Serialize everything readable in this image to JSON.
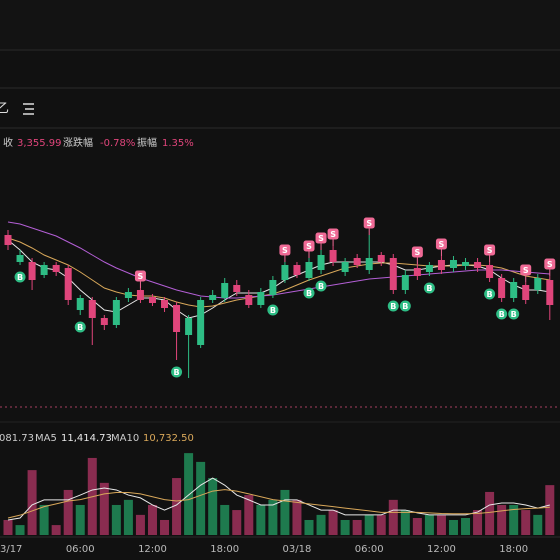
{
  "toolbar": {
    "label": "乙"
  },
  "info": {
    "close_label": "收",
    "close": "3,355.99",
    "change_label": "涨跌幅",
    "change": "-0.78%",
    "amplitude_label": "振幅",
    "amplitude": "1.35%"
  },
  "volume_legend": {
    "vol": "081.73",
    "ma5_label": "MA5",
    "ma5": "11,414.73",
    "ma10_label": "MA10",
    "ma10": "10,732.50"
  },
  "chart": {
    "type": "candlestick",
    "categories": [
      "03/17",
      null,
      null,
      null,
      null,
      null,
      "06:00",
      null,
      null,
      null,
      null,
      null,
      "12:00",
      null,
      null,
      null,
      null,
      null,
      "18:00",
      null,
      null,
      null,
      null,
      null,
      "03/18",
      null,
      null,
      null,
      null,
      null,
      "06:00",
      null,
      null,
      null,
      null,
      null,
      "12:00",
      null,
      null,
      null,
      null,
      null,
      "18:00",
      null,
      null,
      null
    ],
    "ylim": [
      3295,
      3420
    ],
    "up_color": "#2ebd85",
    "down_color": "#e0457b",
    "candles": [
      [
        3377.5,
        3380,
        3370,
        3372.5
      ],
      [
        3364,
        3370,
        3362.5,
        3367.5
      ],
      [
        3364,
        3366,
        3350,
        3355
      ],
      [
        3357.5,
        3364,
        3356,
        3362.5
      ],
      [
        3362.5,
        3364,
        3357,
        3359
      ],
      [
        3361,
        3362.5,
        3342.5,
        3345
      ],
      [
        3340,
        3347.5,
        3337.5,
        3346
      ],
      [
        3345,
        3346.5,
        3322.5,
        3336
      ],
      [
        3336,
        3337.5,
        3330,
        3332.5
      ],
      [
        3332.5,
        3346.5,
        3331,
        3345
      ],
      [
        3346,
        3351,
        3344,
        3349
      ],
      [
        3350,
        3351,
        3343.5,
        3345
      ],
      [
        3346.5,
        3348,
        3342,
        3343.5
      ],
      [
        3345,
        3346.5,
        3339,
        3341
      ],
      [
        3342.5,
        3344,
        3315,
        3329
      ],
      [
        3327.5,
        3337.5,
        3306,
        3336
      ],
      [
        3322.5,
        3346.5,
        3321,
        3345
      ],
      [
        3345,
        3350,
        3343.5,
        3347.5
      ],
      [
        3346,
        3356,
        3344,
        3353.5
      ],
      [
        3352.5,
        3355,
        3347,
        3349
      ],
      [
        3347.5,
        3350,
        3341,
        3342.5
      ],
      [
        3342.5,
        3351,
        3341,
        3349
      ],
      [
        3347.5,
        3357,
        3346,
        3355
      ],
      [
        3355,
        3364,
        3353.5,
        3362.5
      ],
      [
        3362.5,
        3364,
        3356,
        3357.5
      ],
      [
        3356,
        3366,
        3354.5,
        3364
      ],
      [
        3360,
        3370,
        3358,
        3367.5
      ],
      [
        3370,
        3372,
        3362,
        3364
      ],
      [
        3359,
        3366,
        3357,
        3364
      ],
      [
        3366,
        3368,
        3361,
        3362.5
      ],
      [
        3360,
        3377.5,
        3358,
        3366
      ],
      [
        3367.5,
        3369,
        3362,
        3364
      ],
      [
        3366,
        3368,
        3348,
        3350
      ],
      [
        3350,
        3360,
        3348,
        3357.5
      ],
      [
        3361,
        3363,
        3355,
        3357
      ],
      [
        3359,
        3364,
        3357,
        3362.5
      ],
      [
        3365,
        3367,
        3358,
        3360
      ],
      [
        3361,
        3367,
        3359,
        3365
      ],
      [
        3362,
        3366,
        3360,
        3364
      ],
      [
        3364,
        3366,
        3359,
        3361
      ],
      [
        3362.5,
        3364,
        3354,
        3356
      ],
      [
        3356,
        3358,
        3344,
        3346
      ],
      [
        3346,
        3356,
        3344,
        3354
      ],
      [
        3352.5,
        3354,
        3343,
        3345
      ],
      [
        3350,
        3358,
        3348,
        3356
      ],
      [
        3355,
        3357,
        3335,
        3342.5
      ]
    ],
    "ma_lines": [
      {
        "color": "#e8e8e8",
        "values": [
          3375,
          3370,
          3364,
          3361,
          3360,
          3356,
          3350,
          3345,
          3340,
          3339,
          3342.5,
          3346,
          3346,
          3345,
          3340,
          3336,
          3337.5,
          3341,
          3345,
          3348.5,
          3348.5,
          3348.5,
          3351,
          3355,
          3357.5,
          3360,
          3362.5,
          3364,
          3364,
          3364,
          3364,
          3364,
          3362.5,
          3360,
          3360,
          3361,
          3362,
          3362.5,
          3362.5,
          3362,
          3360,
          3356,
          3352.5,
          3350,
          3350,
          3349
        ]
      },
      {
        "color": "#d9a85a",
        "values": [
          3376,
          3374,
          3371,
          3367.5,
          3365,
          3362.5,
          3359,
          3355,
          3351,
          3349,
          3347.5,
          3347,
          3347,
          3346,
          3344,
          3342.5,
          3341.5,
          3342,
          3343.5,
          3345,
          3346,
          3347,
          3348,
          3350,
          3352.5,
          3355,
          3357,
          3359,
          3361,
          3362,
          3363,
          3363.5,
          3363.5,
          3363,
          3362.5,
          3362,
          3362,
          3362,
          3362.5,
          3362.5,
          3362,
          3361,
          3359,
          3357,
          3356,
          3355
        ]
      },
      {
        "color": "#b45fd6",
        "values": [
          3384,
          3383,
          3381,
          3379,
          3377,
          3374,
          3371,
          3367.5,
          3364,
          3361,
          3358.5,
          3356,
          3354,
          3352,
          3350,
          3348.5,
          3347,
          3346.5,
          3346,
          3346,
          3346.5,
          3347,
          3347.5,
          3348.5,
          3349.5,
          3350.5,
          3351.5,
          3352.5,
          3353.5,
          3354.5,
          3355.5,
          3356,
          3356.5,
          3357,
          3357.5,
          3358,
          3358.5,
          3359,
          3359.5,
          3360,
          3360,
          3360,
          3359.5,
          3359,
          3358.5,
          3358
        ]
      }
    ],
    "markers": [
      {
        "candle": 1,
        "label": "B"
      },
      {
        "candle": 6,
        "label": "B"
      },
      {
        "candle": 11,
        "label": "S"
      },
      {
        "candle": 14,
        "label": "B"
      },
      {
        "candle": 22,
        "label": "B"
      },
      {
        "candle": 23,
        "label": "S"
      },
      {
        "candle": 25,
        "label": "S"
      },
      {
        "candle": 25,
        "label": "B"
      },
      {
        "candle": 26,
        "label": "S"
      },
      {
        "candle": 26,
        "label": "B"
      },
      {
        "candle": 27,
        "label": "S"
      },
      {
        "candle": 30,
        "label": "S"
      },
      {
        "candle": 32,
        "label": "B"
      },
      {
        "candle": 33,
        "label": "B"
      },
      {
        "candle": 34,
        "label": "S"
      },
      {
        "candle": 35,
        "label": "B"
      },
      {
        "candle": 36,
        "label": "S"
      },
      {
        "candle": 40,
        "label": "S"
      },
      {
        "candle": 40,
        "label": "B"
      },
      {
        "candle": 41,
        "label": "B"
      },
      {
        "candle": 42,
        "label": "B"
      },
      {
        "candle": 43,
        "label": "S"
      },
      {
        "candle": 45,
        "label": "S"
      }
    ],
    "volume": {
      "ylim": [
        0,
        30000
      ],
      "up_color": "#1e7a4e",
      "down_color": "#8a2c50",
      "values": [
        5300,
        3500,
        22900,
        10600,
        3500,
        15900,
        10600,
        27200,
        18400,
        10600,
        12400,
        7100,
        10600,
        5300,
        20100,
        28900,
        25800,
        20100,
        10600,
        8800,
        14100,
        10600,
        12400,
        15900,
        12400,
        5300,
        7100,
        8800,
        5300,
        5300,
        7100,
        7100,
        12400,
        8800,
        6000,
        7100,
        7100,
        5300,
        6000,
        8800,
        15200,
        10600,
        10600,
        8800,
        7100,
        17600
      ],
      "ma_lines": [
        {
          "color": "#e8e8e8",
          "values": [
            5300,
            6000,
            10600,
            12400,
            12400,
            12400,
            14100,
            15900,
            16600,
            15900,
            14100,
            13100,
            10600,
            8800,
            10600,
            14100,
            17600,
            20100,
            17600,
            14100,
            12400,
            10600,
            10600,
            12400,
            12400,
            10600,
            8800,
            8800,
            7100,
            7100,
            7100,
            7100,
            8800,
            8800,
            7800,
            7100,
            7100,
            7100,
            7100,
            8100,
            10600,
            11300,
            11300,
            10600,
            9500,
            10600
          ]
        },
        {
          "color": "#d9a85a",
          "values": [
            6000,
            7000,
            8500,
            10000,
            11000,
            12000,
            12500,
            13500,
            14500,
            15000,
            15000,
            14500,
            13500,
            12500,
            12000,
            12500,
            14000,
            15500,
            16000,
            15500,
            14500,
            13500,
            12500,
            12000,
            11500,
            11000,
            10500,
            10000,
            9500,
            9000,
            8500,
            8000,
            8000,
            8000,
            8000,
            7800,
            7600,
            7500,
            7500,
            7600,
            8000,
            8500,
            9000,
            9300,
            9500,
            9800
          ]
        }
      ]
    }
  }
}
